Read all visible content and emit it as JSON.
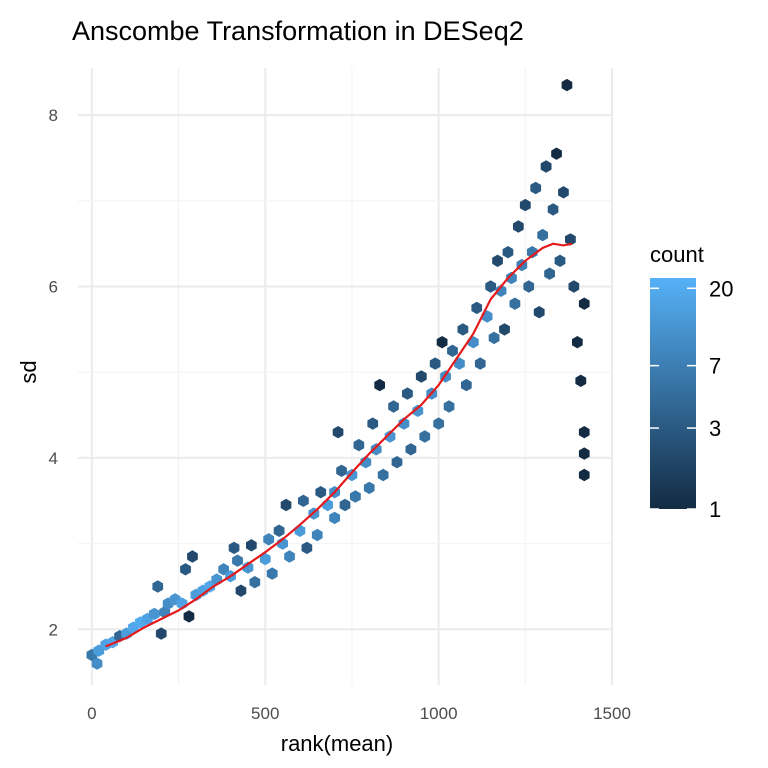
{
  "chart_data": {
    "type": "heatmap",
    "subtype": "hexbin with smoothed trend line",
    "title": "Anscombe Transformation in DESeq2",
    "xlabel": "rank(mean)",
    "ylabel": "sd",
    "xlim": [
      -40,
      1500
    ],
    "ylim": [
      1.35,
      8.55
    ],
    "x_ticks": [
      0,
      500,
      1000,
      1500
    ],
    "y_ticks": [
      2,
      4,
      6,
      8
    ],
    "grid": true,
    "legend": {
      "title": "count",
      "placement": "right",
      "scale": "log",
      "breaks": [
        1,
        3,
        7,
        20
      ],
      "range": [
        1,
        23
      ],
      "low_color": "#132B43",
      "high_color": "#56B1F7"
    },
    "trend_color": "#e41a1c",
    "trend_line": [
      [
        40,
        1.8
      ],
      [
        100,
        1.9
      ],
      [
        150,
        2.02
      ],
      [
        200,
        2.12
      ],
      [
        250,
        2.22
      ],
      [
        300,
        2.35
      ],
      [
        350,
        2.5
      ],
      [
        400,
        2.62
      ],
      [
        450,
        2.76
      ],
      [
        500,
        2.9
      ],
      [
        550,
        3.05
      ],
      [
        600,
        3.22
      ],
      [
        650,
        3.4
      ],
      [
        700,
        3.6
      ],
      [
        750,
        3.83
      ],
      [
        800,
        4.05
      ],
      [
        850,
        4.25
      ],
      [
        900,
        4.45
      ],
      [
        950,
        4.62
      ],
      [
        1000,
        4.85
      ],
      [
        1050,
        5.15
      ],
      [
        1100,
        5.45
      ],
      [
        1150,
        5.85
      ],
      [
        1200,
        6.1
      ],
      [
        1250,
        6.3
      ],
      [
        1300,
        6.45
      ],
      [
        1330,
        6.5
      ],
      [
        1360,
        6.48
      ],
      [
        1385,
        6.5
      ]
    ],
    "hexbins": [
      [
        0,
        1.7,
        6
      ],
      [
        15,
        1.6,
        10
      ],
      [
        20,
        1.75,
        14
      ],
      [
        40,
        1.82,
        16
      ],
      [
        60,
        1.85,
        18
      ],
      [
        80,
        1.92,
        4
      ],
      [
        100,
        1.95,
        14
      ],
      [
        120,
        2.02,
        18
      ],
      [
        140,
        2.08,
        20
      ],
      [
        160,
        2.12,
        16
      ],
      [
        180,
        2.18,
        12
      ],
      [
        190,
        2.5,
        4
      ],
      [
        200,
        1.95,
        2
      ],
      [
        210,
        2.2,
        8
      ],
      [
        220,
        2.3,
        10
      ],
      [
        240,
        2.35,
        12
      ],
      [
        260,
        2.3,
        16
      ],
      [
        270,
        2.7,
        3
      ],
      [
        280,
        2.15,
        1
      ],
      [
        290,
        2.85,
        2
      ],
      [
        300,
        2.4,
        14
      ],
      [
        320,
        2.45,
        16
      ],
      [
        340,
        2.5,
        18
      ],
      [
        360,
        2.58,
        12
      ],
      [
        380,
        2.7,
        8
      ],
      [
        400,
        2.62,
        14
      ],
      [
        410,
        2.95,
        3
      ],
      [
        420,
        2.8,
        6
      ],
      [
        430,
        2.45,
        2
      ],
      [
        450,
        2.72,
        12
      ],
      [
        460,
        2.98,
        2
      ],
      [
        470,
        2.55,
        5
      ],
      [
        500,
        2.82,
        14
      ],
      [
        510,
        3.05,
        8
      ],
      [
        520,
        2.65,
        6
      ],
      [
        540,
        3.15,
        4
      ],
      [
        550,
        3.0,
        12
      ],
      [
        560,
        3.45,
        2
      ],
      [
        570,
        2.85,
        8
      ],
      [
        600,
        3.15,
        14
      ],
      [
        610,
        3.5,
        4
      ],
      [
        620,
        2.95,
        3
      ],
      [
        640,
        3.35,
        12
      ],
      [
        650,
        3.1,
        8
      ],
      [
        660,
        3.6,
        3
      ],
      [
        680,
        3.45,
        14
      ],
      [
        700,
        3.6,
        10
      ],
      [
        700,
        3.3,
        8
      ],
      [
        710,
        4.3,
        2
      ],
      [
        720,
        3.85,
        4
      ],
      [
        730,
        3.45,
        4
      ],
      [
        750,
        3.8,
        12
      ],
      [
        760,
        3.55,
        6
      ],
      [
        770,
        4.15,
        4
      ],
      [
        790,
        3.95,
        10
      ],
      [
        800,
        3.65,
        6
      ],
      [
        810,
        4.4,
        3
      ],
      [
        820,
        4.1,
        10
      ],
      [
        830,
        4.85,
        1
      ],
      [
        840,
        3.8,
        5
      ],
      [
        860,
        4.25,
        12
      ],
      [
        870,
        4.6,
        4
      ],
      [
        880,
        3.95,
        4
      ],
      [
        900,
        4.4,
        10
      ],
      [
        910,
        4.75,
        3
      ],
      [
        920,
        4.1,
        4
      ],
      [
        940,
        4.55,
        12
      ],
      [
        950,
        4.95,
        2
      ],
      [
        960,
        4.25,
        5
      ],
      [
        980,
        4.75,
        10
      ],
      [
        990,
        5.1,
        3
      ],
      [
        1000,
        4.4,
        5
      ],
      [
        1010,
        5.35,
        1
      ],
      [
        1020,
        4.95,
        10
      ],
      [
        1030,
        4.6,
        5
      ],
      [
        1040,
        5.25,
        4
      ],
      [
        1060,
        5.1,
        10
      ],
      [
        1070,
        5.5,
        3
      ],
      [
        1080,
        4.85,
        4
      ],
      [
        1100,
        5.35,
        10
      ],
      [
        1110,
        5.75,
        3
      ],
      [
        1120,
        5.1,
        4
      ],
      [
        1140,
        5.65,
        10
      ],
      [
        1150,
        6.0,
        3
      ],
      [
        1160,
        5.4,
        5
      ],
      [
        1170,
        6.3,
        2
      ],
      [
        1180,
        5.95,
        8
      ],
      [
        1190,
        5.5,
        2
      ],
      [
        1200,
        6.4,
        3
      ],
      [
        1210,
        6.1,
        8
      ],
      [
        1220,
        5.8,
        5
      ],
      [
        1230,
        6.7,
        2
      ],
      [
        1240,
        6.25,
        7
      ],
      [
        1250,
        6.95,
        2
      ],
      [
        1260,
        6.0,
        4
      ],
      [
        1270,
        6.4,
        6
      ],
      [
        1280,
        7.15,
        3
      ],
      [
        1290,
        5.7,
        2
      ],
      [
        1300,
        6.6,
        5
      ],
      [
        1310,
        7.4,
        2
      ],
      [
        1320,
        6.15,
        4
      ],
      [
        1330,
        6.9,
        3
      ],
      [
        1340,
        7.55,
        1
      ],
      [
        1350,
        6.3,
        3
      ],
      [
        1360,
        7.1,
        2
      ],
      [
        1370,
        8.35,
        1
      ],
      [
        1380,
        6.55,
        2
      ],
      [
        1390,
        6.0,
        2
      ],
      [
        1400,
        5.35,
        1
      ],
      [
        1410,
        4.9,
        1
      ],
      [
        1420,
        5.8,
        1
      ],
      [
        1420,
        4.3,
        1
      ],
      [
        1420,
        4.05,
        1
      ],
      [
        1420,
        3.8,
        1
      ]
    ]
  }
}
